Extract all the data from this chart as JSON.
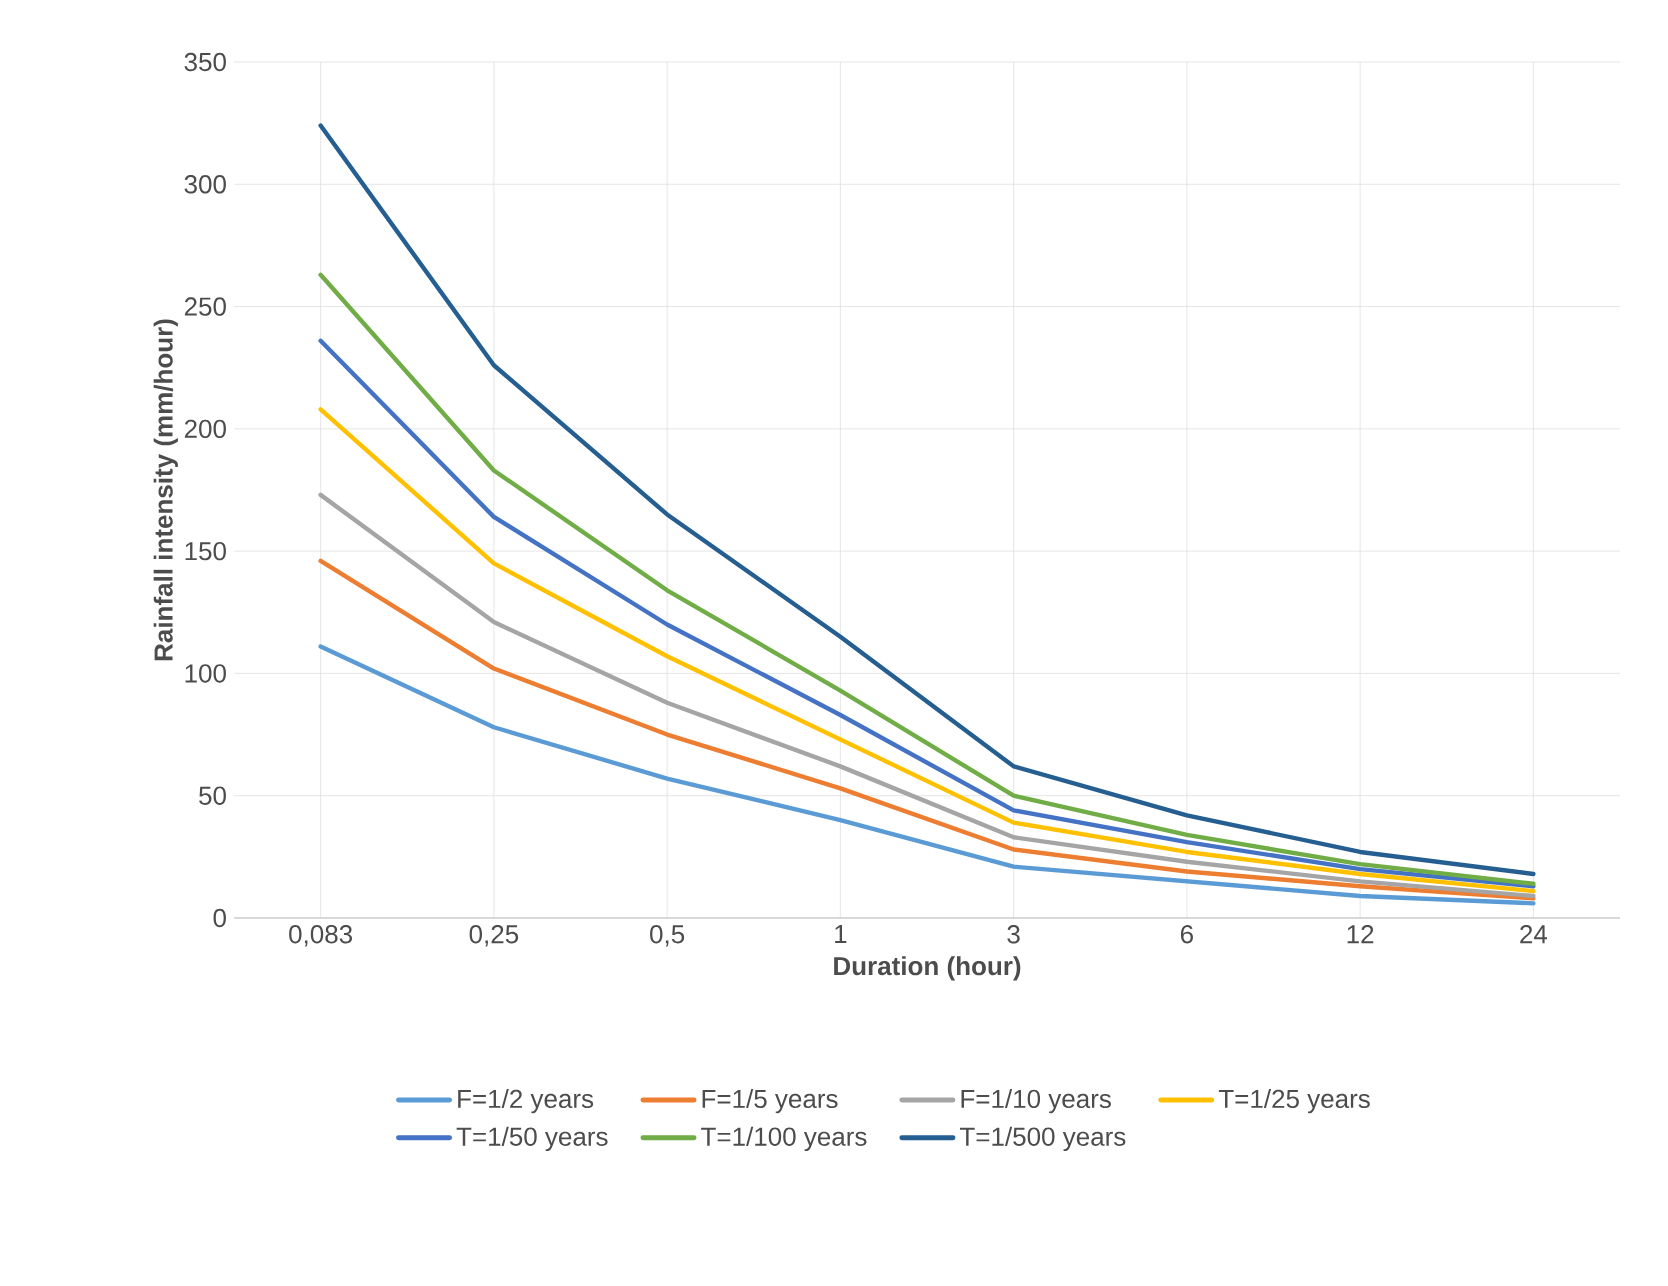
{
  "chart_data": {
    "type": "line",
    "xlabel": "Duration (hour)",
    "ylabel": "Rainfall intensity (mm/hour)",
    "categories": [
      "0,083",
      "0,25",
      "0,5",
      "1",
      "3",
      "6",
      "12",
      "24"
    ],
    "ylim": [
      0,
      350
    ],
    "yticks": [
      0,
      50,
      100,
      150,
      200,
      250,
      300,
      350
    ],
    "grid": true,
    "legend": "bottom",
    "line_style": "solid",
    "series": [
      {
        "name": "F=1/2 years",
        "color": "#5b9bd5",
        "values": [
          111,
          78,
          57,
          40,
          21,
          15,
          9,
          6
        ]
      },
      {
        "name": "F=1/5 years",
        "color": "#ed7d31",
        "values": [
          146,
          102,
          75,
          53,
          28,
          19,
          13,
          8
        ]
      },
      {
        "name": "F=1/10 years",
        "color": "#a5a5a5",
        "values": [
          173,
          121,
          88,
          62,
          33,
          23,
          15,
          9
        ]
      },
      {
        "name": "T=1/25 years",
        "color": "#ffc000",
        "values": [
          208,
          145,
          107,
          73,
          39,
          27,
          18,
          11
        ]
      },
      {
        "name": "T=1/50 years",
        "color": "#4472c4",
        "values": [
          236,
          164,
          120,
          83,
          44,
          31,
          20,
          13
        ]
      },
      {
        "name": "T=1/100 years",
        "color": "#70ad47",
        "values": [
          263,
          183,
          134,
          93,
          50,
          34,
          22,
          14
        ]
      },
      {
        "name": "T=1/500 years",
        "color": "#255e91",
        "values": [
          324,
          226,
          165,
          115,
          62,
          42,
          27,
          18
        ]
      }
    ]
  }
}
